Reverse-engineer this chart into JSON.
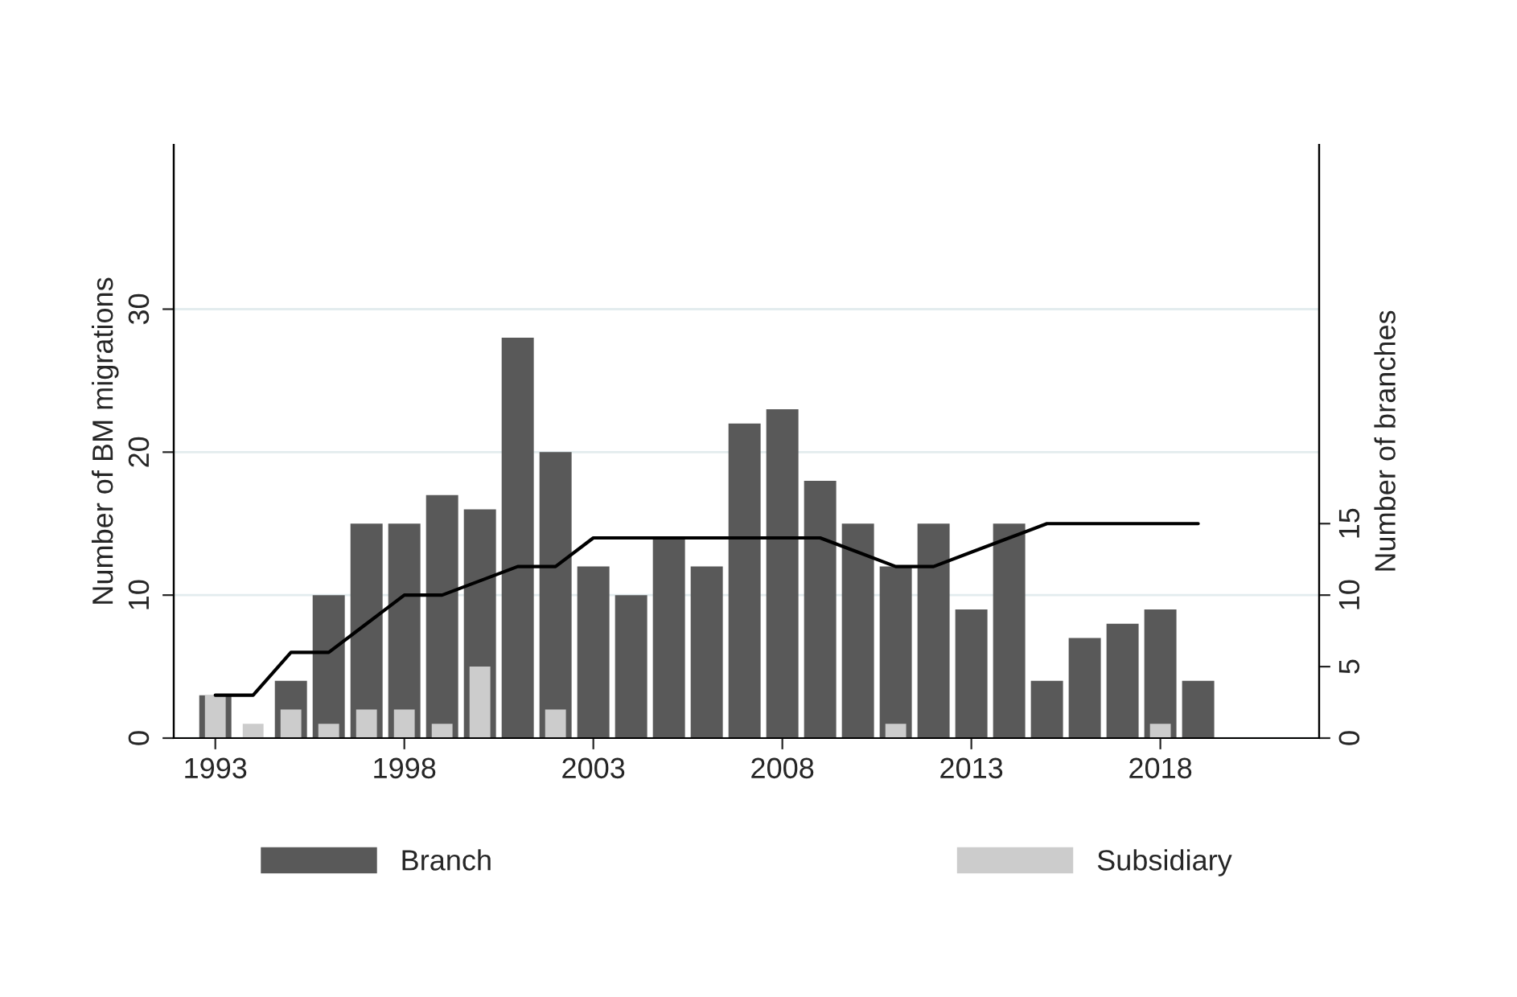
{
  "chart_data": {
    "type": "bar",
    "x": [
      1993,
      1994,
      1995,
      1996,
      1997,
      1998,
      1999,
      2000,
      2001,
      2002,
      2003,
      2004,
      2005,
      2006,
      2007,
      2008,
      2009,
      2010,
      2011,
      2012,
      2013,
      2014,
      2015,
      2016,
      2017,
      2018,
      2019
    ],
    "series": [
      {
        "name": "Branch",
        "color": "#595959",
        "values": [
          3,
          0,
          4,
          10,
          15,
          15,
          17,
          16,
          28,
          20,
          12,
          10,
          14,
          12,
          22,
          23,
          18,
          15,
          12,
          15,
          9,
          15,
          4,
          7,
          8,
          9,
          4
        ]
      },
      {
        "name": "Subsidiary",
        "color": "#cccccc",
        "values": [
          3,
          1,
          2,
          1,
          2,
          2,
          1,
          5,
          0,
          2,
          0,
          0,
          0,
          0,
          0,
          0,
          0,
          0,
          1,
          0,
          0,
          0,
          0,
          0,
          0,
          1,
          0
        ]
      },
      {
        "type": "line",
        "axis": "y2",
        "color": "#000000",
        "values": [
          3,
          3,
          6,
          6,
          8,
          10,
          10,
          11,
          12,
          12,
          14,
          14,
          14,
          14,
          14,
          14,
          14,
          13,
          12,
          12,
          13,
          14,
          15,
          15,
          15,
          15,
          15
        ]
      }
    ],
    "ylabel": "Number of BM migrations",
    "y2label": "Number of branches",
    "xlim": [
      1991.9,
      2022.2
    ],
    "xticks": [
      1993,
      1998,
      2003,
      2008,
      2013,
      2018
    ],
    "ylim": [
      0,
      41.5
    ],
    "yticks": [
      0,
      10,
      20,
      30
    ],
    "y2lim": [
      0,
      41.5
    ],
    "y2ticks": [
      0,
      5,
      10,
      15
    ],
    "grid": "y",
    "legend": "bottom"
  }
}
